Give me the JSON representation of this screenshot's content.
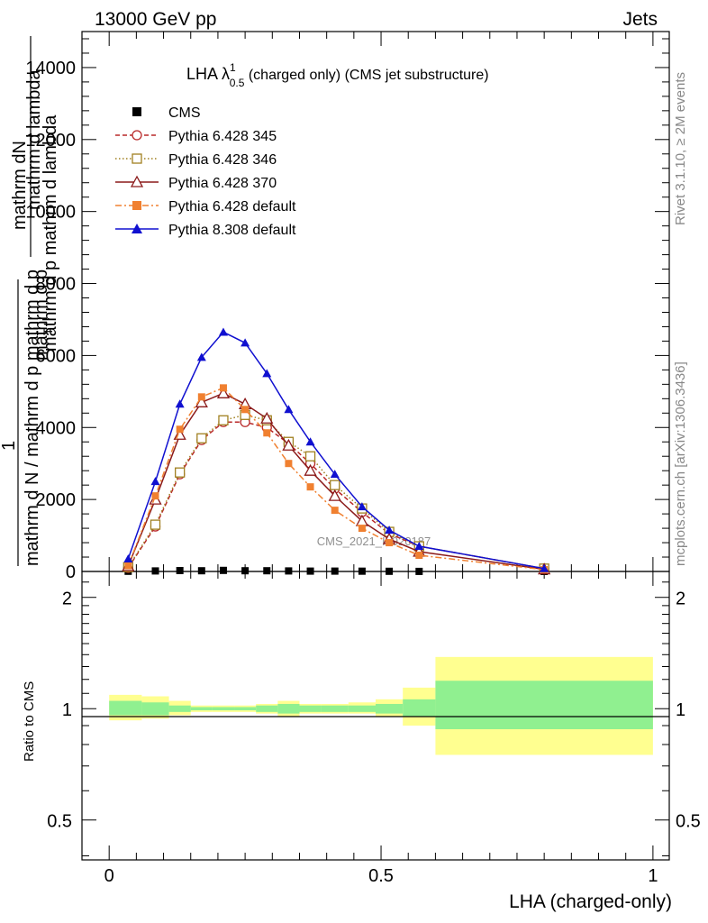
{
  "header": {
    "left": "13000 GeV pp",
    "right": "Jets"
  },
  "plot_title": {
    "prefix": "LHA λ",
    "sup": "1",
    "sub": "0.5",
    "suffix": " (charged only) (CMS jet substructure)"
  },
  "ylabel_main": {
    "top_numerator": "mathrm dN",
    "top_denominator": "mathrm d p mathrm d lambda",
    "top_denominator_extra": "mathrm d lambda",
    "sub_T": "T",
    "frac_prefix": "1",
    "bottom": "mathrm d N / mathrm d p mathrm d p",
    "bottom_extra": "mathrm d p"
  },
  "ylabel_ratio": "Ratio to CMS",
  "xlabel": "LHA (charged-only)",
  "side_labels": {
    "rivet": "Rivet 3.1.10, ≥ 2M events",
    "mcplots": "mcplots.cern.ch [arXiv:1306.3436]"
  },
  "watermark": "CMS_2021_I1920187",
  "chart_data": [
    {
      "type": "line",
      "panel": "main",
      "xlim": [
        -0.05,
        1.03
      ],
      "ylim": [
        0,
        15000
      ],
      "y_ticks": [
        0,
        2000,
        4000,
        6000,
        8000,
        10000,
        12000,
        14000
      ],
      "y_tick_labels": [
        "0",
        "2000",
        "4000",
        "6000",
        "8000",
        "10000",
        "12000",
        "14000"
      ],
      "legend_position": "top-left",
      "series": [
        {
          "name": "CMS",
          "color": "#000000",
          "marker": "square-filled",
          "line": "none",
          "x": [
            0.035,
            0.085,
            0.13,
            0.17,
            0.21,
            0.25,
            0.29,
            0.33,
            0.37,
            0.415,
            0.465,
            0.515,
            0.57,
            0.8
          ],
          "y": [
            5,
            15,
            25,
            20,
            30,
            20,
            20,
            15,
            10,
            10,
            8,
            5,
            2,
            0
          ]
        },
        {
          "name": "Pythia 6.428 345",
          "color": "#b82828",
          "marker": "circle-open",
          "line": "dashed",
          "x": [
            0.035,
            0.085,
            0.13,
            0.17,
            0.21,
            0.25,
            0.29,
            0.33,
            0.37,
            0.415,
            0.465,
            0.515,
            0.57,
            0.8
          ],
          "y": [
            100,
            1250,
            2700,
            3650,
            4150,
            4150,
            4000,
            3550,
            3000,
            2300,
            1650,
            1050,
            700,
            80
          ]
        },
        {
          "name": "Pythia 6.428 346",
          "color": "#a08020",
          "marker": "square-open",
          "line": "dotted",
          "x": [
            0.035,
            0.085,
            0.13,
            0.17,
            0.21,
            0.25,
            0.29,
            0.33,
            0.37,
            0.415,
            0.465,
            0.515,
            0.57,
            0.8
          ],
          "y": [
            120,
            1300,
            2750,
            3700,
            4200,
            4350,
            4200,
            3600,
            3200,
            2400,
            1750,
            1100,
            700,
            80
          ]
        },
        {
          "name": "Pythia 6.428 370",
          "color": "#8b1a1a",
          "marker": "triangle-open",
          "line": "solid",
          "x": [
            0.035,
            0.085,
            0.13,
            0.17,
            0.21,
            0.25,
            0.29,
            0.33,
            0.37,
            0.415,
            0.465,
            0.515,
            0.57,
            0.8
          ],
          "y": [
            150,
            2000,
            3800,
            4700,
            4950,
            4650,
            4250,
            3500,
            2800,
            2100,
            1400,
            900,
            550,
            60
          ]
        },
        {
          "name": "Pythia 6.428 default",
          "color": "#f08030",
          "marker": "square-filled",
          "line": "dashdot",
          "x": [
            0.035,
            0.085,
            0.13,
            0.17,
            0.21,
            0.25,
            0.29,
            0.33,
            0.37,
            0.415,
            0.465,
            0.515,
            0.57,
            0.8
          ],
          "y": [
            160,
            2100,
            3950,
            4850,
            5100,
            4500,
            3850,
            3000,
            2350,
            1700,
            1200,
            800,
            450,
            50
          ]
        },
        {
          "name": "Pythia 8.308 default",
          "color": "#1010d0",
          "marker": "triangle-filled",
          "line": "solid",
          "x": [
            0.035,
            0.085,
            0.13,
            0.17,
            0.21,
            0.25,
            0.29,
            0.33,
            0.37,
            0.415,
            0.465,
            0.515,
            0.57,
            0.8
          ],
          "y": [
            350,
            2500,
            4650,
            5950,
            6650,
            6350,
            5500,
            4500,
            3600,
            2700,
            1800,
            1150,
            700,
            80
          ]
        }
      ]
    },
    {
      "type": "area",
      "panel": "ratio",
      "xlim": [
        -0.05,
        1.03
      ],
      "ylim": [
        0.39,
        2.35
      ],
      "y_scale": "log",
      "y_ticks": [
        0.5,
        1,
        2
      ],
      "y_tick_labels": [
        "0.5",
        "1",
        "2"
      ],
      "x_ticks": [
        0,
        0.5,
        1
      ],
      "x_tick_labels": [
        "0",
        "0.5",
        "1"
      ],
      "bands": [
        {
          "x0": 0.0,
          "x1": 0.06,
          "stat_lo": 0.96,
          "stat_hi": 1.05,
          "tot_lo": 0.93,
          "tot_hi": 1.09
        },
        {
          "x0": 0.06,
          "x1": 0.11,
          "stat_lo": 0.96,
          "stat_hi": 1.04,
          "tot_lo": 0.94,
          "tot_hi": 1.08
        },
        {
          "x0": 0.11,
          "x1": 0.15,
          "stat_lo": 0.98,
          "stat_hi": 1.02,
          "tot_lo": 0.96,
          "tot_hi": 1.05
        },
        {
          "x0": 0.15,
          "x1": 0.19,
          "stat_lo": 0.99,
          "stat_hi": 1.01,
          "tot_lo": 0.98,
          "tot_hi": 1.02
        },
        {
          "x0": 0.19,
          "x1": 0.23,
          "stat_lo": 0.99,
          "stat_hi": 1.01,
          "tot_lo": 0.98,
          "tot_hi": 1.02
        },
        {
          "x0": 0.23,
          "x1": 0.27,
          "stat_lo": 0.99,
          "stat_hi": 1.01,
          "tot_lo": 0.98,
          "tot_hi": 1.02
        },
        {
          "x0": 0.27,
          "x1": 0.31,
          "stat_lo": 0.98,
          "stat_hi": 1.02,
          "tot_lo": 0.97,
          "tot_hi": 1.03
        },
        {
          "x0": 0.31,
          "x1": 0.35,
          "stat_lo": 0.97,
          "stat_hi": 1.03,
          "tot_lo": 0.95,
          "tot_hi": 1.05
        },
        {
          "x0": 0.35,
          "x1": 0.39,
          "stat_lo": 0.98,
          "stat_hi": 1.02,
          "tot_lo": 0.97,
          "tot_hi": 1.03
        },
        {
          "x0": 0.39,
          "x1": 0.44,
          "stat_lo": 0.98,
          "stat_hi": 1.02,
          "tot_lo": 0.97,
          "tot_hi": 1.03
        },
        {
          "x0": 0.44,
          "x1": 0.49,
          "stat_lo": 0.98,
          "stat_hi": 1.02,
          "tot_lo": 0.97,
          "tot_hi": 1.04
        },
        {
          "x0": 0.49,
          "x1": 0.54,
          "stat_lo": 0.97,
          "stat_hi": 1.03,
          "tot_lo": 0.95,
          "tot_hi": 1.06
        },
        {
          "x0": 0.54,
          "x1": 0.6,
          "stat_lo": 0.95,
          "stat_hi": 1.06,
          "tot_lo": 0.9,
          "tot_hi": 1.14
        },
        {
          "x0": 0.6,
          "x1": 1.0,
          "stat_lo": 0.88,
          "stat_hi": 1.19,
          "tot_lo": 0.75,
          "tot_hi": 1.38
        }
      ],
      "stat_color": "#90f090",
      "total_color": "#ffff90",
      "reference_line": 1
    }
  ]
}
